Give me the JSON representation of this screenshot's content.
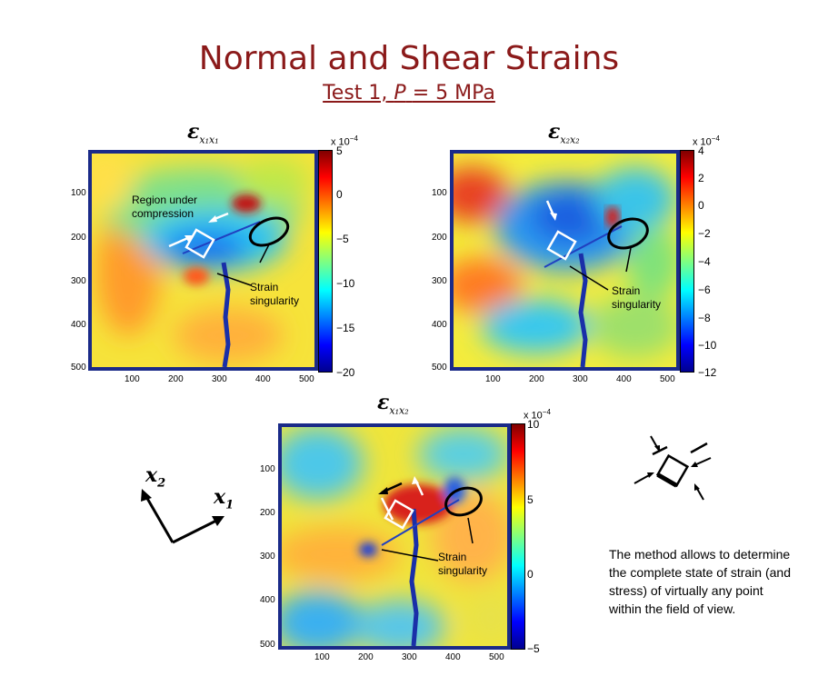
{
  "title": "Normal and Shear Strains",
  "subtitle": {
    "prefix": "Test 1,",
    "p_var": "P",
    "suffix": "= 5 MPa"
  },
  "panels": {
    "e11": {
      "symbol": "ε",
      "subscript": "x₁x₁",
      "scale": "x 10",
      "scale_exp": "−4",
      "colorbar_ticks": [
        "5",
        "0",
        "−5",
        "−10",
        "−15",
        "−20"
      ],
      "y_ticks": [
        "100",
        "200",
        "300",
        "400",
        "500"
      ],
      "x_ticks": [
        "100",
        "200",
        "300",
        "400",
        "500"
      ],
      "annotation_region_1": "Region under",
      "annotation_region_2": "compression",
      "annotation_strain_1": "Strain",
      "annotation_strain_2": "singularity"
    },
    "e22": {
      "symbol": "ε",
      "subscript": "x₂x₂",
      "scale": "x 10",
      "scale_exp": "−4",
      "colorbar_ticks": [
        "4",
        "2",
        "0",
        "−2",
        "−4",
        "−6",
        "−8",
        "−10",
        "−12"
      ],
      "y_ticks": [
        "100",
        "200",
        "300",
        "400",
        "500"
      ],
      "x_ticks": [
        "100",
        "200",
        "300",
        "400",
        "500"
      ],
      "annotation_strain_1": "Strain",
      "annotation_strain_2": "singularity"
    },
    "e12": {
      "symbol": "ε",
      "subscript": "x₁x₂",
      "scale": "x 10",
      "scale_exp": "−4",
      "colorbar_ticks": [
        "10",
        "5",
        "0",
        "−5"
      ],
      "y_ticks": [
        "100",
        "200",
        "300",
        "400",
        "500"
      ],
      "x_ticks": [
        "100",
        "200",
        "300",
        "400",
        "500"
      ],
      "annotation_strain_1": "Strain",
      "annotation_strain_2": "singularity"
    }
  },
  "axes_labels": {
    "x2": "x",
    "x2_sub": "2",
    "x1": "x",
    "x1_sub": "1"
  },
  "method_text": "The method allows to determine the complete state of strain (and stress) of virtually any point within the field of view.",
  "colors": {
    "title": "#8b1a1a",
    "frame": "#1a2a88"
  }
}
